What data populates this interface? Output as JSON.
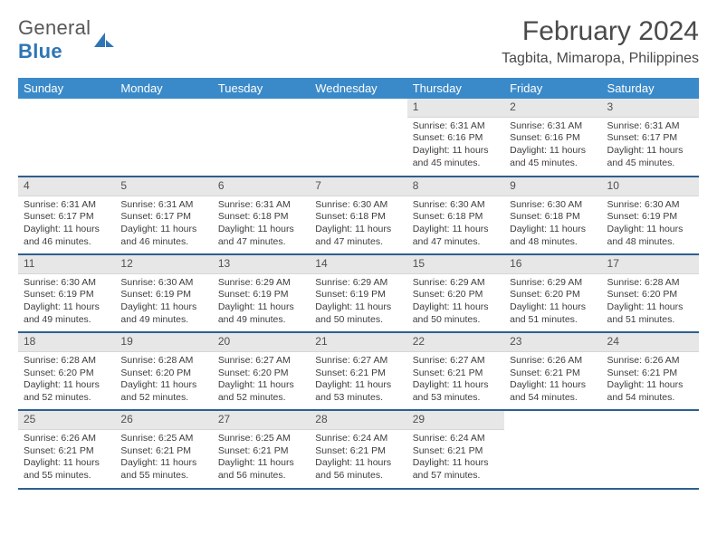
{
  "brand": {
    "word1": "General",
    "word2": "Blue"
  },
  "colors": {
    "header_bg": "#3a8ac9",
    "header_text": "#ffffff",
    "daynum_bg": "#e7e7e7",
    "row_divider": "#2f5f8f",
    "body_text": "#3d3d3d",
    "logo_gray": "#585858",
    "logo_blue": "#2f75b5"
  },
  "title": "February 2024",
  "location": "Tagbita, Mimaropa, Philippines",
  "weekdays": [
    "Sunday",
    "Monday",
    "Tuesday",
    "Wednesday",
    "Thursday",
    "Friday",
    "Saturday"
  ],
  "layout": {
    "columns": 7,
    "rows": 5,
    "first_weekday_index": 4,
    "daynum_fontsize": 12,
    "body_fontsize": 10.5,
    "header_fontsize": 13,
    "title_fontsize": 30,
    "location_fontsize": 16
  },
  "days": [
    {
      "n": 1,
      "sunrise": "6:31 AM",
      "sunset": "6:16 PM",
      "daylight": "11 hours and 45 minutes."
    },
    {
      "n": 2,
      "sunrise": "6:31 AM",
      "sunset": "6:16 PM",
      "daylight": "11 hours and 45 minutes."
    },
    {
      "n": 3,
      "sunrise": "6:31 AM",
      "sunset": "6:17 PM",
      "daylight": "11 hours and 45 minutes."
    },
    {
      "n": 4,
      "sunrise": "6:31 AM",
      "sunset": "6:17 PM",
      "daylight": "11 hours and 46 minutes."
    },
    {
      "n": 5,
      "sunrise": "6:31 AM",
      "sunset": "6:17 PM",
      "daylight": "11 hours and 46 minutes."
    },
    {
      "n": 6,
      "sunrise": "6:31 AM",
      "sunset": "6:18 PM",
      "daylight": "11 hours and 47 minutes."
    },
    {
      "n": 7,
      "sunrise": "6:30 AM",
      "sunset": "6:18 PM",
      "daylight": "11 hours and 47 minutes."
    },
    {
      "n": 8,
      "sunrise": "6:30 AM",
      "sunset": "6:18 PM",
      "daylight": "11 hours and 47 minutes."
    },
    {
      "n": 9,
      "sunrise": "6:30 AM",
      "sunset": "6:18 PM",
      "daylight": "11 hours and 48 minutes."
    },
    {
      "n": 10,
      "sunrise": "6:30 AM",
      "sunset": "6:19 PM",
      "daylight": "11 hours and 48 minutes."
    },
    {
      "n": 11,
      "sunrise": "6:30 AM",
      "sunset": "6:19 PM",
      "daylight": "11 hours and 49 minutes."
    },
    {
      "n": 12,
      "sunrise": "6:30 AM",
      "sunset": "6:19 PM",
      "daylight": "11 hours and 49 minutes."
    },
    {
      "n": 13,
      "sunrise": "6:29 AM",
      "sunset": "6:19 PM",
      "daylight": "11 hours and 49 minutes."
    },
    {
      "n": 14,
      "sunrise": "6:29 AM",
      "sunset": "6:19 PM",
      "daylight": "11 hours and 50 minutes."
    },
    {
      "n": 15,
      "sunrise": "6:29 AM",
      "sunset": "6:20 PM",
      "daylight": "11 hours and 50 minutes."
    },
    {
      "n": 16,
      "sunrise": "6:29 AM",
      "sunset": "6:20 PM",
      "daylight": "11 hours and 51 minutes."
    },
    {
      "n": 17,
      "sunrise": "6:28 AM",
      "sunset": "6:20 PM",
      "daylight": "11 hours and 51 minutes."
    },
    {
      "n": 18,
      "sunrise": "6:28 AM",
      "sunset": "6:20 PM",
      "daylight": "11 hours and 52 minutes."
    },
    {
      "n": 19,
      "sunrise": "6:28 AM",
      "sunset": "6:20 PM",
      "daylight": "11 hours and 52 minutes."
    },
    {
      "n": 20,
      "sunrise": "6:27 AM",
      "sunset": "6:20 PM",
      "daylight": "11 hours and 52 minutes."
    },
    {
      "n": 21,
      "sunrise": "6:27 AM",
      "sunset": "6:21 PM",
      "daylight": "11 hours and 53 minutes."
    },
    {
      "n": 22,
      "sunrise": "6:27 AM",
      "sunset": "6:21 PM",
      "daylight": "11 hours and 53 minutes."
    },
    {
      "n": 23,
      "sunrise": "6:26 AM",
      "sunset": "6:21 PM",
      "daylight": "11 hours and 54 minutes."
    },
    {
      "n": 24,
      "sunrise": "6:26 AM",
      "sunset": "6:21 PM",
      "daylight": "11 hours and 54 minutes."
    },
    {
      "n": 25,
      "sunrise": "6:26 AM",
      "sunset": "6:21 PM",
      "daylight": "11 hours and 55 minutes."
    },
    {
      "n": 26,
      "sunrise": "6:25 AM",
      "sunset": "6:21 PM",
      "daylight": "11 hours and 55 minutes."
    },
    {
      "n": 27,
      "sunrise": "6:25 AM",
      "sunset": "6:21 PM",
      "daylight": "11 hours and 56 minutes."
    },
    {
      "n": 28,
      "sunrise": "6:24 AM",
      "sunset": "6:21 PM",
      "daylight": "11 hours and 56 minutes."
    },
    {
      "n": 29,
      "sunrise": "6:24 AM",
      "sunset": "6:21 PM",
      "daylight": "11 hours and 57 minutes."
    }
  ],
  "labels": {
    "sunrise": "Sunrise:",
    "sunset": "Sunset:",
    "daylight": "Daylight:"
  }
}
